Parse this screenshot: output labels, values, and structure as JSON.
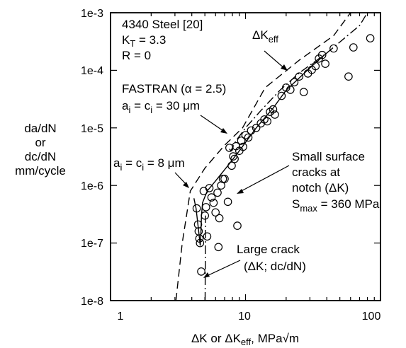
{
  "chart_data": {
    "type": "scatter",
    "x_scale": "log",
    "y_scale": "log",
    "xlim": [
      1,
      100
    ],
    "ylim": [
      1e-08,
      0.001
    ],
    "grid": false,
    "x_ticks": [
      "1",
      "10",
      "100"
    ],
    "y_ticks": [
      "1e-8",
      "1e-7",
      "1e-6",
      "1e-5",
      "1e-4",
      "1e-3"
    ],
    "xlabel": {
      "main": "ΔK or ΔK",
      "sub": "eff",
      "rest": ", MPa√m"
    },
    "ylabel": [
      "da/dN",
      "or",
      "dc/dN",
      "mm/cycle"
    ],
    "info": {
      "material": "4340 Steel [20]",
      "kt_main": "K",
      "kt_sub": "T",
      "kt_rest": " = 3.3",
      "r_ratio": "R = 0"
    },
    "annotations": {
      "dk_eff": {
        "main": "ΔK",
        "sub": "eff"
      },
      "fastran": "FASTRAN (α = 2.5)",
      "ai30": {
        "a": "a",
        "i": "i",
        "eq": " = c",
        "i2": "i",
        "rest": " = 30 μm"
      },
      "ai8": {
        "a": "a",
        "i": "i",
        "eq": " = c",
        "i2": "i",
        "rest": " = 8 μm"
      },
      "small_cracks": [
        "Small surface",
        "cracks at",
        "notch (ΔK)"
      ],
      "smax": {
        "main": "S",
        "sub": "max",
        "rest": " = 360 MPa"
      },
      "large_crack": [
        "Large crack",
        "(ΔK; dc/dN)"
      ]
    },
    "series": [
      {
        "marker": "open-circle",
        "points": [
          [
            4.35,
            4e-07
          ],
          [
            4.45,
            2.1e-07
          ],
          [
            4.5,
            1.6e-07
          ],
          [
            4.55,
            1.2e-07
          ],
          [
            4.6,
            1e-07
          ],
          [
            4.7,
            3.2e-08
          ],
          [
            4.9,
            8e-07
          ],
          [
            5.0,
            3e-07
          ],
          [
            5.1,
            4.2e-07
          ],
          [
            5.2,
            1.3e-07
          ],
          [
            5.4,
            9e-07
          ],
          [
            5.6,
            6.2e-07
          ],
          [
            5.8,
            5e-07
          ],
          [
            6.0,
            3.4e-07
          ],
          [
            6.2,
            7.5e-07
          ],
          [
            6.4,
            2.7e-07
          ],
          [
            6.6,
            1e-06
          ],
          [
            6.8,
            1.3e-06
          ],
          [
            6.3,
            8.5e-08
          ],
          [
            7.0,
            1.3e-06
          ],
          [
            7.4,
            5.2e-07
          ],
          [
            7.6,
            4.5e-06
          ],
          [
            7.9,
            2.2e-06
          ],
          [
            8.1,
            3.2e-06
          ],
          [
            8.3,
            2.9e-06
          ],
          [
            8.5,
            4.8e-06
          ],
          [
            8.7,
            2e-07
          ],
          [
            9.0,
            4e-06
          ],
          [
            9.3,
            6e-06
          ],
          [
            9.6,
            4.7e-06
          ],
          [
            10.0,
            7.5e-06
          ],
          [
            10.5,
            6.8e-06
          ],
          [
            11.0,
            9e-06
          ],
          [
            12.0,
            1e-05
          ],
          [
            13.0,
            1.2e-05
          ],
          [
            13.8,
            1.4e-05
          ],
          [
            14.5,
            1.3e-05
          ],
          [
            15.2,
            1.9e-05
          ],
          [
            16.0,
            2.1e-05
          ],
          [
            16.5,
            1.7e-05
          ],
          [
            18.5,
            3.6e-05
          ],
          [
            20.0,
            5e-05
          ],
          [
            21.5,
            4.6e-05
          ],
          [
            23.0,
            6.2e-05
          ],
          [
            25.0,
            7.8e-05
          ],
          [
            27.0,
            4.2e-05
          ],
          [
            29.0,
            8.8e-05
          ],
          [
            31.0,
            0.000102
          ],
          [
            33.0,
            0.000118
          ],
          [
            35.0,
            0.00016
          ],
          [
            37.0,
            0.000185
          ],
          [
            39.0,
            0.00013
          ],
          [
            45.0,
            0.00024
          ],
          [
            58.0,
            7.8e-05
          ],
          [
            63.0,
            0.00025
          ],
          [
            84.0,
            0.00036
          ]
        ]
      },
      {
        "name": "ΔKeff",
        "style": "dash",
        "points": [
          [
            3.05,
            1e-08
          ],
          [
            3.4,
            1e-07
          ],
          [
            3.9,
            8e-07
          ],
          [
            5.0,
            2e-06
          ],
          [
            7.0,
            5e-06
          ],
          [
            9.5,
            1e-05
          ],
          [
            14.0,
            5e-05
          ],
          [
            25.0,
            0.00015
          ],
          [
            45.0,
            0.0004
          ],
          [
            60.0,
            0.001
          ]
        ]
      },
      {
        "name": "FASTRAN, ai = ci = 30 μm",
        "style": "dashdot",
        "points": [
          [
            7.6,
            4.3e-06
          ],
          [
            7.8,
            4e-06
          ],
          [
            8.5,
            6e-06
          ],
          [
            10.0,
            1e-05
          ],
          [
            13.0,
            2e-05
          ],
          [
            18.0,
            4.5e-05
          ],
          [
            25.0,
            9e-05
          ],
          [
            40.0,
            0.0002
          ],
          [
            70.0,
            0.0006
          ],
          [
            80.0,
            0.001
          ]
        ]
      },
      {
        "name": "FASTRAN, ai = ci = 8 μm",
        "style": "solid",
        "points": [
          [
            4.15,
            6e-07
          ],
          [
            4.3,
            4e-07
          ],
          [
            4.5,
            1.6e-07
          ],
          [
            4.62,
            9e-08
          ],
          [
            4.67,
            1.5e-07
          ],
          [
            4.72,
            3e-07
          ],
          [
            4.8,
            5e-07
          ],
          [
            5.2,
            8e-07
          ],
          [
            6.0,
            1.2e-06
          ],
          [
            7.5,
            2.3e-06
          ],
          [
            9.0,
            4e-06
          ],
          [
            12.0,
            1e-05
          ],
          [
            16.0,
            2.2e-05
          ],
          [
            20.0,
            4.5e-05
          ],
          [
            30.0,
            0.00011
          ],
          [
            40.0,
            0.0002
          ]
        ]
      },
      {
        "name": "Large crack",
        "style": "dashdot",
        "points": [
          [
            5.02,
            1e-08
          ],
          [
            5.05,
            3e-07
          ]
        ]
      }
    ]
  }
}
